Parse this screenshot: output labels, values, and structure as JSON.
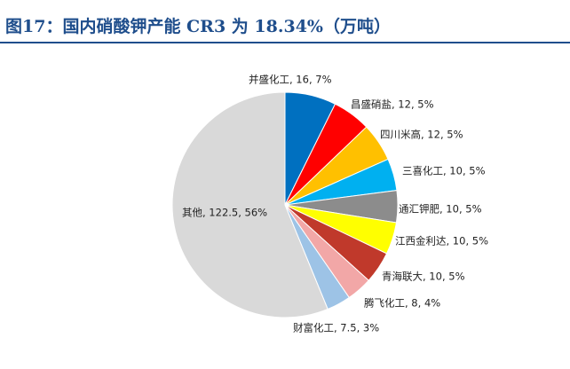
{
  "chart_data": {
    "type": "pie",
    "title": "图17：国内硝酸钾产能 CR3 为 18.34%（万吨）",
    "categories": [
      "并盛化工, 16, 7%",
      "昌盛硝盐, 12, 5%",
      "四川米高, 12, 5%",
      "三喜化工, 10, 5%",
      "通汇钾肥, 10, 5%",
      "江西金利达, 10, 5%",
      "青海联大, 10, 5%",
      "腾飞化工, 8, 4%",
      "财富化工, 7.5, 3%",
      "其他, 122.5, 56%"
    ],
    "values": [
      16,
      12,
      12,
      10,
      10,
      10,
      10,
      8,
      7.5,
      122.5
    ],
    "colors": [
      "#0070c0",
      "#ff0000",
      "#ffc000",
      "#00b0f0",
      "#8c8c8c",
      "#ffff00",
      "#c0392b",
      "#f2a7a7",
      "#9dc3e6",
      "#d9d9d9"
    ]
  }
}
